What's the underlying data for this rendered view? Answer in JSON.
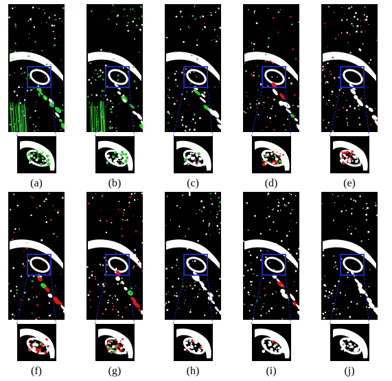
{
  "figure": {
    "panels": [
      {
        "label": "(a)",
        "colors": [
          "#ffffff",
          "#2bd12b"
        ],
        "green": 0.55,
        "red": 0.0
      },
      {
        "label": "(b)",
        "colors": [
          "#ffffff",
          "#2bd12b"
        ],
        "green": 0.5,
        "red": 0.0
      },
      {
        "label": "(c)",
        "colors": [
          "#ffffff",
          "#2bd12b",
          "#e01818"
        ],
        "green": 0.15,
        "red": 0.08
      },
      {
        "label": "(d)",
        "colors": [
          "#ffffff",
          "#2bd12b",
          "#e01818"
        ],
        "green": 0.2,
        "red": 0.35
      },
      {
        "label": "(e)",
        "colors": [
          "#ffffff",
          "#2bd12b",
          "#e01818"
        ],
        "green": 0.06,
        "red": 0.3
      },
      {
        "label": "(f)",
        "colors": [
          "#ffffff",
          "#2bd12b",
          "#e01818"
        ],
        "green": 0.1,
        "red": 0.3
      },
      {
        "label": "(g)",
        "colors": [
          "#ffffff",
          "#2bd12b",
          "#e01818"
        ],
        "green": 0.12,
        "red": 0.38
      },
      {
        "label": "(h)",
        "colors": [
          "#ffffff",
          "#2bd12b",
          "#e01818"
        ],
        "green": 0.04,
        "red": 0.06
      },
      {
        "label": "(i)",
        "colors": [
          "#ffffff",
          "#2bd12b",
          "#e01818"
        ],
        "green": 0.04,
        "red": 0.08
      },
      {
        "label": "(j)",
        "colors": [
          "#ffffff"
        ],
        "green": 0.0,
        "red": 0.0
      }
    ],
    "zoom_box_color": "#1f2fd6"
  }
}
